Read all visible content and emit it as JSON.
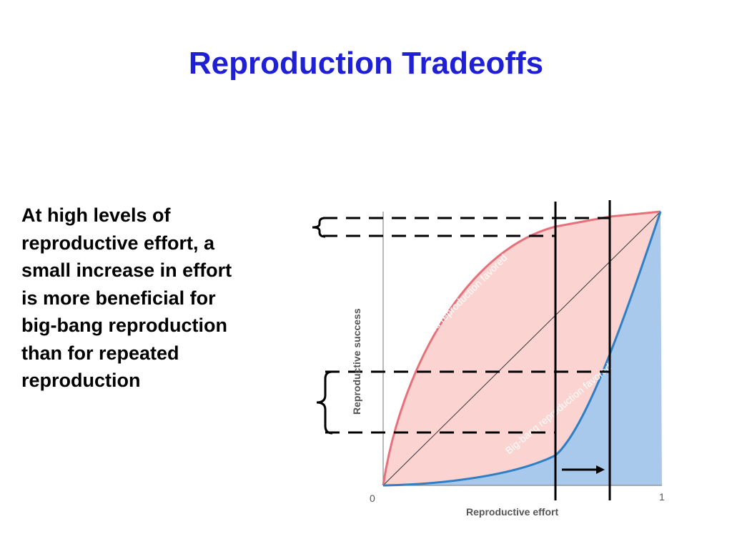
{
  "slide": {
    "title": "Reproduction Tradeoffs",
    "body_lines": [
      "At high levels of",
      "reproductive effort, a",
      "small increase in effort",
      "is more beneficial for",
      "big-bang reproduction",
      "than for repeated",
      "reproduction"
    ]
  },
  "figure": {
    "y_axis_label": "Reproductive success",
    "x_axis_label": "Reproductive effort",
    "x_tick_start": "0",
    "x_tick_end": "1",
    "upper_region_label": "Repeated reproduction favored",
    "lower_region_label": "Big-bang reproduction favored",
    "colors": {
      "repeated_curve": "#e8707a",
      "repeated_fill": "#fbd3d0",
      "bigbang_curve": "#2f7fc4",
      "bigbang_fill": "#a8c8ec",
      "title": "#1f1fd6"
    }
  }
}
